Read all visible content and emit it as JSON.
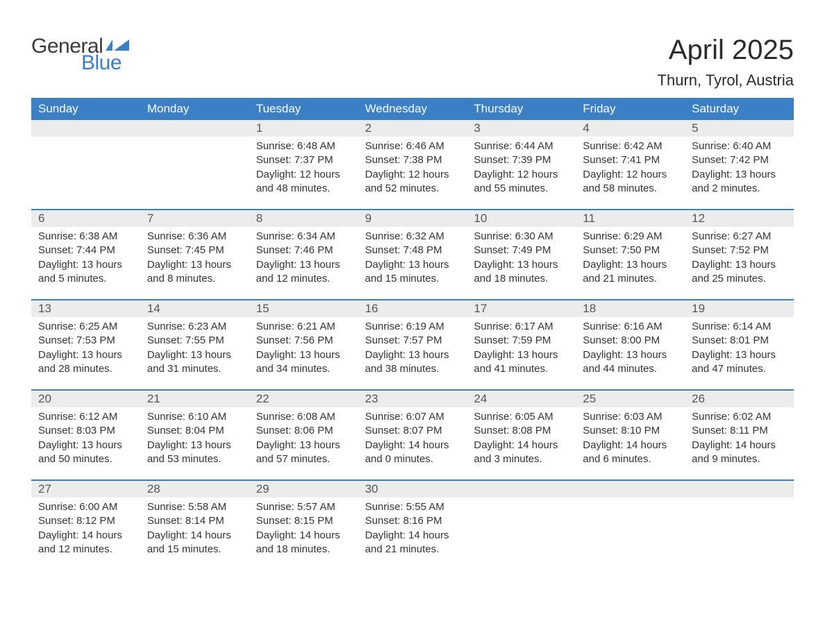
{
  "logo": {
    "text_general": "General",
    "text_blue": "Blue",
    "flag_color": "#3b7fc4"
  },
  "title": "April 2025",
  "location": "Thurn, Tyrol, Austria",
  "colors": {
    "header_bg": "#3b7fc4",
    "header_text": "#ffffff",
    "strip_bg": "#ececec",
    "week_divider": "#3b7fc4",
    "body_text": "#333333",
    "day_number_text": "#555555",
    "page_bg": "#ffffff"
  },
  "typography": {
    "title_fontsize": 40,
    "location_fontsize": 22,
    "weekday_fontsize": 17,
    "daynum_fontsize": 17,
    "body_fontsize": 15,
    "logo_fontsize": 30
  },
  "weekdays": [
    "Sunday",
    "Monday",
    "Tuesday",
    "Wednesday",
    "Thursday",
    "Friday",
    "Saturday"
  ],
  "weeks": [
    {
      "numbers": [
        "",
        "",
        "1",
        "2",
        "3",
        "4",
        "5"
      ],
      "cells": [
        {
          "sunrise": "",
          "sunset": "",
          "daylight1": "",
          "daylight2": ""
        },
        {
          "sunrise": "",
          "sunset": "",
          "daylight1": "",
          "daylight2": ""
        },
        {
          "sunrise": "Sunrise: 6:48 AM",
          "sunset": "Sunset: 7:37 PM",
          "daylight1": "Daylight: 12 hours",
          "daylight2": "and 48 minutes."
        },
        {
          "sunrise": "Sunrise: 6:46 AM",
          "sunset": "Sunset: 7:38 PM",
          "daylight1": "Daylight: 12 hours",
          "daylight2": "and 52 minutes."
        },
        {
          "sunrise": "Sunrise: 6:44 AM",
          "sunset": "Sunset: 7:39 PM",
          "daylight1": "Daylight: 12 hours",
          "daylight2": "and 55 minutes."
        },
        {
          "sunrise": "Sunrise: 6:42 AM",
          "sunset": "Sunset: 7:41 PM",
          "daylight1": "Daylight: 12 hours",
          "daylight2": "and 58 minutes."
        },
        {
          "sunrise": "Sunrise: 6:40 AM",
          "sunset": "Sunset: 7:42 PM",
          "daylight1": "Daylight: 13 hours",
          "daylight2": "and 2 minutes."
        }
      ]
    },
    {
      "numbers": [
        "6",
        "7",
        "8",
        "9",
        "10",
        "11",
        "12"
      ],
      "cells": [
        {
          "sunrise": "Sunrise: 6:38 AM",
          "sunset": "Sunset: 7:44 PM",
          "daylight1": "Daylight: 13 hours",
          "daylight2": "and 5 minutes."
        },
        {
          "sunrise": "Sunrise: 6:36 AM",
          "sunset": "Sunset: 7:45 PM",
          "daylight1": "Daylight: 13 hours",
          "daylight2": "and 8 minutes."
        },
        {
          "sunrise": "Sunrise: 6:34 AM",
          "sunset": "Sunset: 7:46 PM",
          "daylight1": "Daylight: 13 hours",
          "daylight2": "and 12 minutes."
        },
        {
          "sunrise": "Sunrise: 6:32 AM",
          "sunset": "Sunset: 7:48 PM",
          "daylight1": "Daylight: 13 hours",
          "daylight2": "and 15 minutes."
        },
        {
          "sunrise": "Sunrise: 6:30 AM",
          "sunset": "Sunset: 7:49 PM",
          "daylight1": "Daylight: 13 hours",
          "daylight2": "and 18 minutes."
        },
        {
          "sunrise": "Sunrise: 6:29 AM",
          "sunset": "Sunset: 7:50 PM",
          "daylight1": "Daylight: 13 hours",
          "daylight2": "and 21 minutes."
        },
        {
          "sunrise": "Sunrise: 6:27 AM",
          "sunset": "Sunset: 7:52 PM",
          "daylight1": "Daylight: 13 hours",
          "daylight2": "and 25 minutes."
        }
      ]
    },
    {
      "numbers": [
        "13",
        "14",
        "15",
        "16",
        "17",
        "18",
        "19"
      ],
      "cells": [
        {
          "sunrise": "Sunrise: 6:25 AM",
          "sunset": "Sunset: 7:53 PM",
          "daylight1": "Daylight: 13 hours",
          "daylight2": "and 28 minutes."
        },
        {
          "sunrise": "Sunrise: 6:23 AM",
          "sunset": "Sunset: 7:55 PM",
          "daylight1": "Daylight: 13 hours",
          "daylight2": "and 31 minutes."
        },
        {
          "sunrise": "Sunrise: 6:21 AM",
          "sunset": "Sunset: 7:56 PM",
          "daylight1": "Daylight: 13 hours",
          "daylight2": "and 34 minutes."
        },
        {
          "sunrise": "Sunrise: 6:19 AM",
          "sunset": "Sunset: 7:57 PM",
          "daylight1": "Daylight: 13 hours",
          "daylight2": "and 38 minutes."
        },
        {
          "sunrise": "Sunrise: 6:17 AM",
          "sunset": "Sunset: 7:59 PM",
          "daylight1": "Daylight: 13 hours",
          "daylight2": "and 41 minutes."
        },
        {
          "sunrise": "Sunrise: 6:16 AM",
          "sunset": "Sunset: 8:00 PM",
          "daylight1": "Daylight: 13 hours",
          "daylight2": "and 44 minutes."
        },
        {
          "sunrise": "Sunrise: 6:14 AM",
          "sunset": "Sunset: 8:01 PM",
          "daylight1": "Daylight: 13 hours",
          "daylight2": "and 47 minutes."
        }
      ]
    },
    {
      "numbers": [
        "20",
        "21",
        "22",
        "23",
        "24",
        "25",
        "26"
      ],
      "cells": [
        {
          "sunrise": "Sunrise: 6:12 AM",
          "sunset": "Sunset: 8:03 PM",
          "daylight1": "Daylight: 13 hours",
          "daylight2": "and 50 minutes."
        },
        {
          "sunrise": "Sunrise: 6:10 AM",
          "sunset": "Sunset: 8:04 PM",
          "daylight1": "Daylight: 13 hours",
          "daylight2": "and 53 minutes."
        },
        {
          "sunrise": "Sunrise: 6:08 AM",
          "sunset": "Sunset: 8:06 PM",
          "daylight1": "Daylight: 13 hours",
          "daylight2": "and 57 minutes."
        },
        {
          "sunrise": "Sunrise: 6:07 AM",
          "sunset": "Sunset: 8:07 PM",
          "daylight1": "Daylight: 14 hours",
          "daylight2": "and 0 minutes."
        },
        {
          "sunrise": "Sunrise: 6:05 AM",
          "sunset": "Sunset: 8:08 PM",
          "daylight1": "Daylight: 14 hours",
          "daylight2": "and 3 minutes."
        },
        {
          "sunrise": "Sunrise: 6:03 AM",
          "sunset": "Sunset: 8:10 PM",
          "daylight1": "Daylight: 14 hours",
          "daylight2": "and 6 minutes."
        },
        {
          "sunrise": "Sunrise: 6:02 AM",
          "sunset": "Sunset: 8:11 PM",
          "daylight1": "Daylight: 14 hours",
          "daylight2": "and 9 minutes."
        }
      ]
    },
    {
      "numbers": [
        "27",
        "28",
        "29",
        "30",
        "",
        "",
        ""
      ],
      "cells": [
        {
          "sunrise": "Sunrise: 6:00 AM",
          "sunset": "Sunset: 8:12 PM",
          "daylight1": "Daylight: 14 hours",
          "daylight2": "and 12 minutes."
        },
        {
          "sunrise": "Sunrise: 5:58 AM",
          "sunset": "Sunset: 8:14 PM",
          "daylight1": "Daylight: 14 hours",
          "daylight2": "and 15 minutes."
        },
        {
          "sunrise": "Sunrise: 5:57 AM",
          "sunset": "Sunset: 8:15 PM",
          "daylight1": "Daylight: 14 hours",
          "daylight2": "and 18 minutes."
        },
        {
          "sunrise": "Sunrise: 5:55 AM",
          "sunset": "Sunset: 8:16 PM",
          "daylight1": "Daylight: 14 hours",
          "daylight2": "and 21 minutes."
        },
        {
          "sunrise": "",
          "sunset": "",
          "daylight1": "",
          "daylight2": ""
        },
        {
          "sunrise": "",
          "sunset": "",
          "daylight1": "",
          "daylight2": ""
        },
        {
          "sunrise": "",
          "sunset": "",
          "daylight1": "",
          "daylight2": ""
        }
      ]
    }
  ]
}
